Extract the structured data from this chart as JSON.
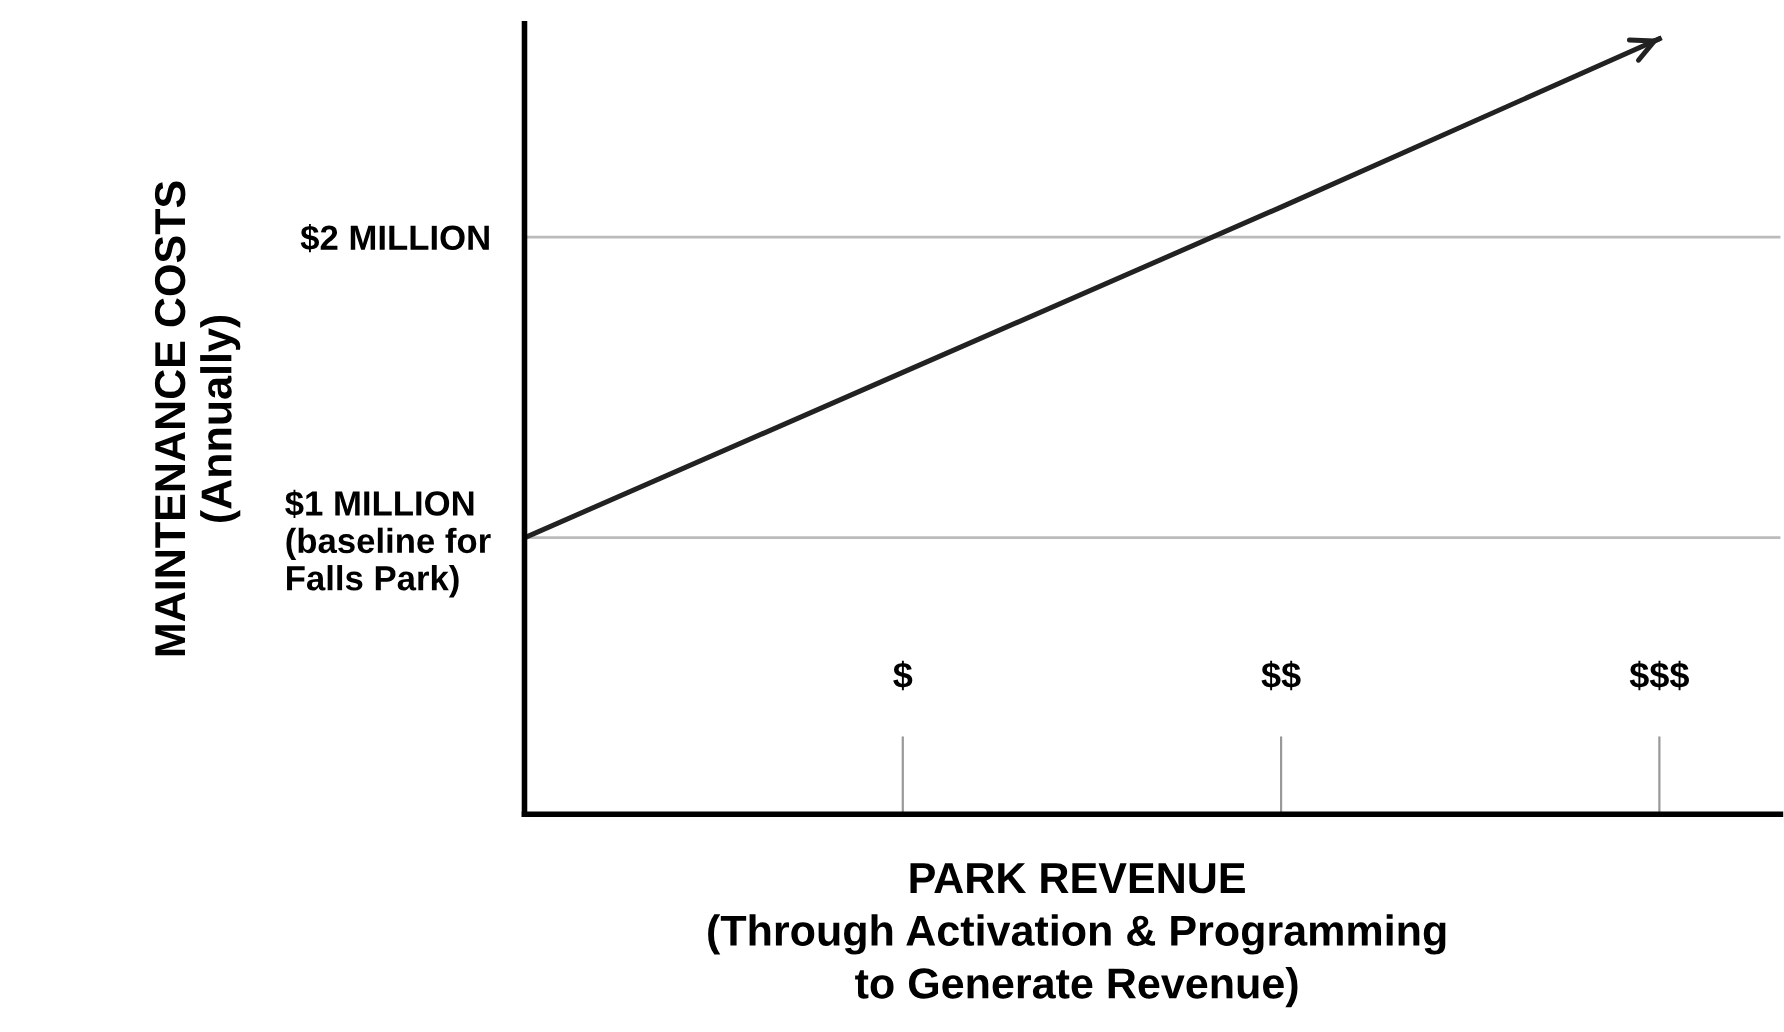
{
  "chart_data": {
    "type": "line",
    "relative": false,
    "xlabel": "PARK REVENUE\n(Through Activation & Programming\nto Generate Revenue)",
    "ylabel": "MAINTENANCE COSTS\n(Annually)",
    "categories": [
      null,
      "$",
      "$$",
      "$$$"
    ],
    "series": [
      {
        "color": "#222222",
        "values": [
          1,
          1.55,
          2.1,
          2.66
        ]
      }
    ],
    "ylim": [
      0.08,
      2.71
    ],
    "yticks": [
      {
        "value": 1,
        "label": "$1 MILLION\n(baseline for\nFalls Park)"
      },
      {
        "value": 2,
        "label": "$2 MILLION"
      }
    ],
    "grid": "y",
    "legend": false,
    "marker": "none",
    "line_style": "solid"
  }
}
